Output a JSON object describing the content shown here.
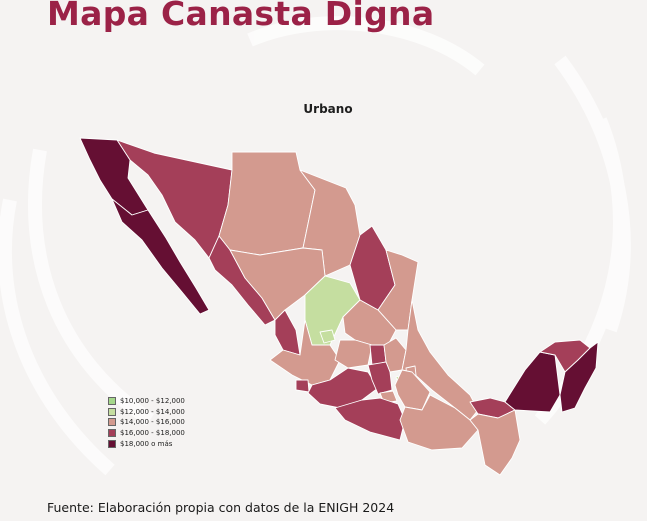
{
  "header": {
    "title": "Mapa Canasta Digna"
  },
  "map": {
    "subtitle": "Urbano",
    "fills": {
      "bin1": "#a5d88b",
      "bin2": "#c5dea0",
      "bin3": "#d39a8f",
      "bin4": "#a43f59",
      "bin5": "#650f33",
      "border": "#ffffff"
    },
    "legend": [
      {
        "label": "$10,000 - $12,000",
        "color": "#a5d88b"
      },
      {
        "label": "$12,000 - $14,000",
        "color": "#c5dea0"
      },
      {
        "label": "$14,000 - $16,000",
        "color": "#d39a8f"
      },
      {
        "label": "$16,000 - $18,000",
        "color": "#a43f59"
      },
      {
        "label": "$18,000 o más",
        "color": "#650f33"
      }
    ]
  },
  "footer": {
    "source": "Fuente: Elaboración propia con datos de la ENIGH 2024"
  }
}
